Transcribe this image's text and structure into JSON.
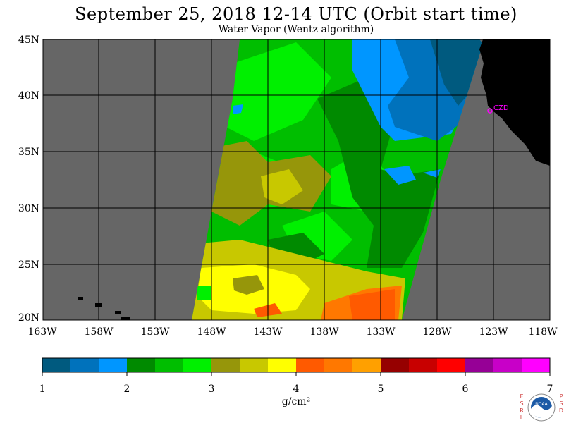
{
  "title": "September 25, 2018  12-14 UTC  (Orbit start time)",
  "subtitle": "Water Vapor (Wentz algorithm)",
  "lat_labels": [
    "45N",
    "40N",
    "35N",
    "30N",
    "25N",
    "20N"
  ],
  "lon_labels": [
    "163W",
    "158W",
    "153W",
    "148W",
    "143W",
    "138W",
    "133W",
    "128W",
    "123W",
    "118W"
  ],
  "station_label": "CZD",
  "colorbar": {
    "tick_labels": [
      "1",
      "2",
      "3",
      "4",
      "5",
      "6",
      "7"
    ],
    "units": "g/cm²",
    "colors": [
      "#005a7f",
      "#0072bc",
      "#0096ff",
      "#008a00",
      "#00be00",
      "#00f000",
      "#96960a",
      "#c8c800",
      "#ffff00",
      "#ff5a00",
      "#ff7800",
      "#ffa000",
      "#960000",
      "#c80000",
      "#ff0000",
      "#960096",
      "#c800c8",
      "#ff00ff"
    ]
  },
  "map_colors": {
    "background": "#666666",
    "land": "#000000",
    "missing_or_land_fill": "#666666"
  },
  "logo": {
    "left_letters": "E S R L",
    "right_letters": "P S D",
    "name": "NOAA"
  }
}
